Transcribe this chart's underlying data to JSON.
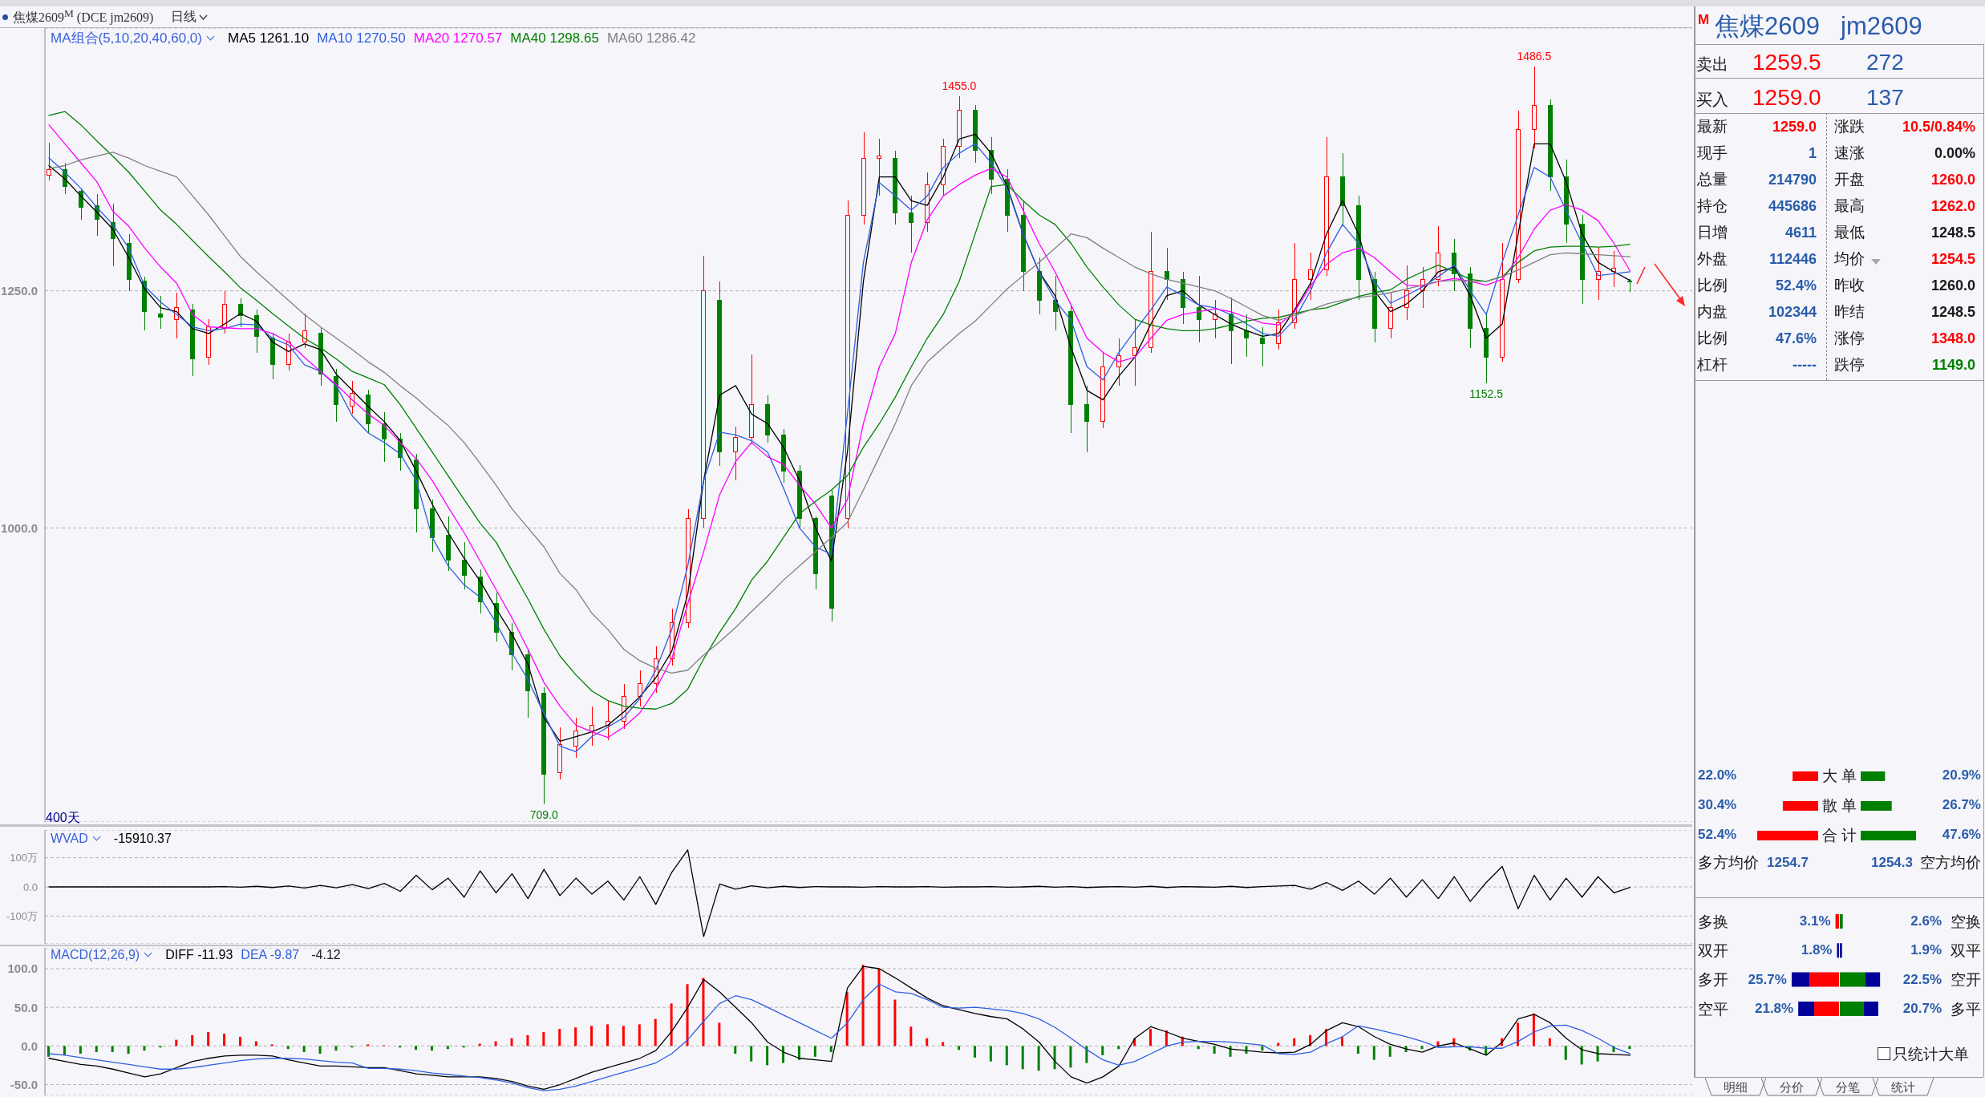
{
  "chart_data": [
    {
      "type": "candlestick",
      "title": "焦煤2609$^{M}$ (DCE jm2609)",
      "subtitle": "日线",
      "legend_title": "MA组合(5,10,20,40,60,0)",
      "legend": "top left",
      "grid": "y",
      "categories": [
        null,
        null,
        null,
        null,
        null,
        null,
        null,
        null,
        null,
        null,
        null,
        null,
        null,
        null,
        null,
        null,
        null,
        null,
        null,
        null,
        null,
        null,
        null,
        null,
        null,
        null,
        null,
        null,
        null,
        null,
        null,
        null,
        null,
        null,
        null,
        null,
        null,
        null,
        null,
        null,
        null,
        null,
        null,
        null,
        null,
        null,
        null,
        null,
        null,
        null,
        null,
        null,
        null,
        null,
        null,
        null,
        null,
        null,
        null,
        null,
        null,
        null,
        null,
        null,
        null,
        null,
        null,
        null,
        null,
        null,
        null,
        null,
        null,
        null,
        null,
        null,
        null,
        null,
        null,
        null,
        null,
        null,
        null,
        null,
        null,
        null,
        null,
        null,
        null,
        null,
        null,
        null,
        null,
        null,
        null,
        null,
        null,
        null,
        null,
        null
      ],
      "ohlc": [
        [
          1372,
          1406,
          1366,
          1378
        ],
        [
          1378,
          1385,
          1352,
          1360
        ],
        [
          1355,
          1358,
          1325,
          1338
        ],
        [
          1340,
          1352,
          1308,
          1325
        ],
        [
          1322,
          1342,
          1276,
          1305
        ],
        [
          1300,
          1310,
          1250,
          1262
        ],
        [
          1260,
          1265,
          1208,
          1228
        ],
        [
          1226,
          1245,
          1210,
          1222
        ],
        [
          1220,
          1248,
          1200,
          1232
        ],
        [
          1230,
          1236,
          1160,
          1178
        ],
        [
          1180,
          1220,
          1172,
          1212
        ],
        [
          1210,
          1250,
          1205,
          1236
        ],
        [
          1236,
          1242,
          1212,
          1224
        ],
        [
          1224,
          1230,
          1185,
          1202
        ],
        [
          1200,
          1206,
          1157,
          1172
        ],
        [
          1172,
          1205,
          1166,
          1196
        ],
        [
          1196,
          1226,
          1190,
          1208
        ],
        [
          1205,
          1212,
          1150,
          1162
        ],
        [
          1160,
          1168,
          1112,
          1130
        ],
        [
          1128,
          1155,
          1120,
          1142
        ],
        [
          1140,
          1146,
          1100,
          1110
        ],
        [
          1110,
          1122,
          1070,
          1094
        ],
        [
          1094,
          1100,
          1060,
          1074
        ],
        [
          1072,
          1078,
          995,
          1020
        ],
        [
          1020,
          1030,
          975,
          990
        ],
        [
          992,
          1012,
          955,
          966
        ],
        [
          966,
          985,
          935,
          950
        ],
        [
          948,
          956,
          910,
          922
        ],
        [
          920,
          932,
          880,
          890
        ],
        [
          890,
          900,
          850,
          866
        ],
        [
          866,
          872,
          800,
          828
        ],
        [
          826,
          832,
          709,
          740
        ],
        [
          742,
          790,
          735,
          772
        ],
        [
          770,
          800,
          758,
          786
        ],
        [
          786,
          812,
          770,
          792
        ],
        [
          792,
          818,
          776,
          796
        ],
        [
          796,
          835,
          788,
          822
        ],
        [
          822,
          850,
          812,
          836
        ],
        [
          836,
          875,
          826,
          862
        ],
        [
          862,
          915,
          855,
          900
        ],
        [
          900,
          1020,
          895,
          1010
        ],
        [
          1010,
          1287,
          1000,
          1250
        ],
        [
          1240,
          1260,
          1065,
          1080
        ],
        [
          1080,
          1107,
          1050,
          1095
        ],
        [
          1095,
          1183,
          1088,
          1130
        ],
        [
          1130,
          1140,
          1090,
          1098
        ],
        [
          1098,
          1104,
          1048,
          1060
        ],
        [
          1060,
          1066,
          1000,
          1010
        ],
        [
          1010,
          1012,
          935,
          952
        ],
        [
          1034,
          1040,
          901,
          915
        ],
        [
          1010,
          1345,
          1000,
          1330
        ],
        [
          1330,
          1417,
          1320,
          1390
        ],
        [
          1390,
          1410,
          1350,
          1392
        ],
        [
          1390,
          1398,
          1320,
          1332
        ],
        [
          1332,
          1350,
          1290,
          1322
        ],
        [
          1322,
          1375,
          1312,
          1362
        ],
        [
          1362,
          1410,
          1350,
          1402
        ],
        [
          1402,
          1455,
          1390,
          1440
        ],
        [
          1440,
          1446,
          1385,
          1398
        ],
        [
          1398,
          1412,
          1352,
          1368
        ],
        [
          1368,
          1378,
          1312,
          1330
        ],
        [
          1330,
          1345,
          1250,
          1270
        ],
        [
          1270,
          1285,
          1225,
          1240
        ],
        [
          1240,
          1266,
          1208,
          1228
        ],
        [
          1228,
          1235,
          1100,
          1130
        ],
        [
          1130,
          1150,
          1080,
          1112
        ],
        [
          1112,
          1185,
          1105,
          1170
        ],
        [
          1170,
          1200,
          1150,
          1182
        ],
        [
          1182,
          1219,
          1150,
          1190
        ],
        [
          1190,
          1312,
          1185,
          1270
        ],
        [
          1270,
          1295,
          1240,
          1262
        ],
        [
          1262,
          1270,
          1215,
          1232
        ],
        [
          1232,
          1266,
          1196,
          1220
        ],
        [
          1220,
          1240,
          1200,
          1226
        ],
        [
          1226,
          1243,
          1173,
          1208
        ],
        [
          1208,
          1225,
          1180,
          1200
        ],
        [
          1200,
          1212,
          1170,
          1194
        ],
        [
          1194,
          1230,
          1188,
          1216
        ],
        [
          1216,
          1300,
          1210,
          1262
        ],
        [
          1262,
          1290,
          1240,
          1272
        ],
        [
          1272,
          1412,
          1266,
          1370
        ],
        [
          1370,
          1395,
          1320,
          1340
        ],
        [
          1340,
          1350,
          1240,
          1262
        ],
        [
          1262,
          1270,
          1196,
          1210
        ],
        [
          1210,
          1248,
          1200,
          1232
        ],
        [
          1232,
          1277,
          1219,
          1250
        ],
        [
          1250,
          1275,
          1232,
          1262
        ],
        [
          1262,
          1318,
          1255,
          1290
        ],
        [
          1290,
          1305,
          1250,
          1268
        ],
        [
          1268,
          1275,
          1190,
          1210
        ],
        [
          1210,
          1225,
          1152.5,
          1180
        ],
        [
          1180,
          1300,
          1175,
          1262
        ],
        [
          1262,
          1440,
          1258,
          1420
        ],
        [
          1420,
          1486.5,
          1400,
          1445
        ],
        [
          1445,
          1452,
          1355,
          1370
        ],
        [
          1370,
          1388,
          1300,
          1320
        ],
        [
          1320,
          1330,
          1236,
          1262
        ],
        [
          1262,
          1295,
          1240,
          1270
        ],
        [
          1270,
          1292,
          1254,
          1274
        ],
        [
          1260,
          1262,
          1248.5,
          1259
        ]
      ],
      "series": [
        {
          "type": "line",
          "name": "MA5 1261.10",
          "color": "#000000",
          "values": [
            1382,
            1368,
            1350,
            1333,
            1315,
            1285,
            1252,
            1232,
            1228,
            1210,
            1205,
            1215,
            1226,
            1218,
            1196,
            1186,
            1194,
            1188,
            1162,
            1145,
            1128,
            1112,
            1092,
            1060,
            1025,
            995,
            968,
            944,
            915,
            888,
            856,
            800,
            775,
            780,
            785,
            792,
            806,
            822,
            842,
            870,
            930,
            1050,
            1140,
            1150,
            1120,
            1110,
            1085,
            1050,
            1000,
            965,
            1080,
            1260,
            1370,
            1370,
            1345,
            1340,
            1370,
            1410,
            1415,
            1395,
            1360,
            1310,
            1270,
            1245,
            1190,
            1145,
            1135,
            1160,
            1180,
            1215,
            1245,
            1250,
            1235,
            1225,
            1215,
            1208,
            1202,
            1205,
            1230,
            1258,
            1310,
            1345,
            1310,
            1250,
            1228,
            1236,
            1250,
            1270,
            1275,
            1245,
            1200,
            1215,
            1310,
            1405,
            1405,
            1365,
            1310,
            1280,
            1270,
            1261
          ]
        },
        {
          "type": "line",
          "name": "MA10 1270.50",
          "color": "#2f5fe0",
          "values": [
            1390,
            1375,
            1358,
            1338,
            1320,
            1295,
            1255,
            1238,
            1225,
            1212,
            1208,
            1210,
            1215,
            1214,
            1200,
            1193,
            1172,
            1165,
            1150,
            1118,
            1100,
            1090,
            1078,
            1050,
            990,
            960,
            940,
            927,
            900,
            868,
            840,
            804,
            770,
            764,
            780,
            790,
            800,
            820,
            850,
            893,
            960,
            1050,
            1101,
            1098,
            1092,
            1080,
            1042,
            1000,
            980,
            972,
            1120,
            1280,
            1364,
            1350,
            1335,
            1350,
            1380,
            1395,
            1405,
            1385,
            1358,
            1310,
            1270,
            1240,
            1219,
            1170,
            1156,
            1185,
            1208,
            1230,
            1254,
            1245,
            1235,
            1232,
            1225,
            1215,
            1205,
            1202,
            1220,
            1250,
            1290,
            1320,
            1300,
            1260,
            1237,
            1245,
            1254,
            1265,
            1277,
            1250,
            1225,
            1280,
            1330,
            1380,
            1370,
            1335,
            1300,
            1266,
            1268,
            1270
          ]
        },
        {
          "type": "line",
          "name": "MA20 1270.57",
          "color": "#ff00ff",
          "values": [
            1425,
            1405,
            1385,
            1365,
            1334,
            1318,
            1295,
            1275,
            1258,
            1225,
            1212,
            1211,
            1210,
            1210,
            1205,
            1196,
            1180,
            1165,
            1151,
            1135,
            1120,
            1108,
            1090,
            1073,
            1050,
            1022,
            995,
            965,
            935,
            905,
            872,
            837,
            812,
            792,
            785,
            779,
            790,
            805,
            830,
            862,
            920,
            975,
            1035,
            1070,
            1090,
            1075,
            1067,
            1045,
            1025,
            1000,
            1030,
            1110,
            1170,
            1205,
            1280,
            1325,
            1350,
            1362,
            1372,
            1379,
            1370,
            1335,
            1300,
            1270,
            1235,
            1200,
            1185,
            1175,
            1180,
            1200,
            1219,
            1225,
            1228,
            1231,
            1228,
            1222,
            1216,
            1214,
            1228,
            1255,
            1278,
            1290,
            1295,
            1285,
            1270,
            1256,
            1255,
            1260,
            1263,
            1260,
            1256,
            1262,
            1285,
            1315,
            1335,
            1341,
            1335,
            1324,
            1300,
            1271
          ]
        },
        {
          "type": "line",
          "name": "MA40 1298.65",
          "color": "#008000",
          "values": [
            1435,
            1439,
            1425,
            1408,
            1392,
            1375,
            1355,
            1335,
            1320,
            1303,
            1286,
            1270,
            1253,
            1240,
            1226,
            1213,
            1200,
            1190,
            1178,
            1165,
            1158,
            1151,
            1130,
            1105,
            1080,
            1055,
            1030,
            1005,
            985,
            955,
            925,
            893,
            865,
            845,
            828,
            818,
            812,
            810,
            809,
            815,
            830,
            862,
            890,
            915,
            945,
            965,
            990,
            1015,
            1028,
            1040,
            1055,
            1085,
            1110,
            1138,
            1170,
            1200,
            1225,
            1260,
            1310,
            1360,
            1362,
            1345,
            1330,
            1320,
            1300,
            1275,
            1254,
            1235,
            1220,
            1214,
            1210,
            1208,
            1208,
            1210,
            1214,
            1218,
            1221,
            1222,
            1226,
            1230,
            1232,
            1238,
            1244,
            1248,
            1251,
            1262,
            1270,
            1277,
            1270,
            1262,
            1260,
            1265,
            1280,
            1292,
            1296,
            1297,
            1297,
            1296,
            1297,
            1299
          ]
        },
        {
          "type": "line",
          "name": "MA60 1286.42",
          "color": "#808080",
          "values": [
            1379,
            1382,
            1388,
            1392,
            1396,
            1390,
            1382,
            1376,
            1370,
            1350,
            1330,
            1308,
            1286,
            1270,
            1255,
            1240,
            1225,
            1212,
            1200,
            1188,
            1175,
            1164,
            1150,
            1137,
            1122,
            1108,
            1090,
            1068,
            1045,
            1020,
            1000,
            980,
            952,
            935,
            910,
            893,
            872,
            860,
            852,
            847,
            850,
            866,
            880,
            895,
            912,
            928,
            945,
            960,
            975,
            990,
            1006,
            1040,
            1075,
            1110,
            1150,
            1175,
            1190,
            1205,
            1218,
            1235,
            1252,
            1266,
            1280,
            1295,
            1310,
            1306,
            1295,
            1285,
            1275,
            1268,
            1262,
            1258,
            1254,
            1250,
            1242,
            1233,
            1224,
            1219,
            1224,
            1230,
            1236,
            1240,
            1243,
            1245,
            1248,
            1252,
            1256,
            1260,
            1261,
            1260,
            1260,
            1265,
            1272,
            1280,
            1288,
            1290,
            1289,
            1288,
            1287,
            1286
          ]
        }
      ],
      "ylim": [
        690,
        1527
      ],
      "yticks": [
        {
          "value": 1000,
          "label": "1000.0"
        },
        {
          "value": 1250,
          "label": "1250.0"
        }
      ],
      "annotations": [
        {
          "text": "1455.0",
          "y": 1455
        },
        {
          "text": "1486.5",
          "y": 1486.5
        },
        {
          "text": "709.0",
          "y": 709
        },
        {
          "text": "1152.5",
          "y": 1152.5
        },
        "400天"
      ]
    },
    {
      "type": "line",
      "legend_title": "WVAD",
      "legend": "top left",
      "grid": "y",
      "categories": [
        null,
        null,
        null,
        null,
        null,
        null,
        null,
        null,
        null,
        null,
        null,
        null,
        null,
        null,
        null,
        null,
        null,
        null,
        null,
        null,
        null,
        null,
        null,
        null,
        null,
        null,
        null,
        null,
        null,
        null,
        null,
        null,
        null,
        null,
        null,
        null,
        null,
        null,
        null,
        null,
        null,
        null,
        null,
        null,
        null,
        null,
        null,
        null,
        null,
        null,
        null,
        null,
        null,
        null,
        null,
        null,
        null,
        null,
        null,
        null,
        null,
        null,
        null,
        null,
        null,
        null,
        null,
        null,
        null,
        null,
        null,
        null,
        null,
        null,
        null,
        null,
        null,
        null,
        null,
        null,
        null,
        null,
        null,
        null,
        null,
        null,
        null,
        null,
        null,
        null,
        null,
        null,
        null,
        null,
        null,
        null,
        null,
        null,
        null,
        null
      ],
      "series": [
        {
          "name": "-15910.37",
          "color": "#000000",
          "values": [
            0,
            0,
            0,
            0,
            0,
            0,
            0,
            0,
            0,
            0,
            0,
            1,
            -1,
            2,
            -2,
            3,
            -4,
            5,
            -3,
            8,
            -6,
            12,
            -15,
            40,
            -10,
            30,
            -35,
            55,
            -20,
            45,
            -40,
            60,
            -30,
            30,
            -25,
            20,
            -45,
            35,
            -60,
            50,
            127,
            -170,
            10,
            -8,
            4,
            -3,
            2,
            -2,
            1,
            0,
            0,
            -1,
            1,
            0,
            0,
            1,
            -1,
            0,
            0,
            1,
            -1,
            0,
            2,
            -1,
            1,
            -2,
            0,
            1,
            -1,
            2,
            -2,
            1,
            0,
            -1,
            2,
            -2,
            1,
            3,
            5,
            -8,
            15,
            -12,
            20,
            -25,
            30,
            -35,
            25,
            -40,
            35,
            -50,
            15,
            70,
            -75,
            40,
            -45,
            30,
            -35,
            35,
            -20,
            -2
          ]
        }
      ],
      "ylim": [
        -195,
        195
      ],
      "yticks": [
        {
          "value": -100,
          "label": "-100万"
        },
        {
          "value": 0,
          "label": "0.0"
        },
        {
          "value": 100,
          "label": "100万"
        }
      ]
    },
    {
      "type": "bar",
      "legend_title": "MACD(12,26,9)",
      "legend": "top left",
      "grid": "y",
      "categories": [
        null,
        null,
        null,
        null,
        null,
        null,
        null,
        null,
        null,
        null,
        null,
        null,
        null,
        null,
        null,
        null,
        null,
        null,
        null,
        null,
        null,
        null,
        null,
        null,
        null,
        null,
        null,
        null,
        null,
        null,
        null,
        null,
        null,
        null,
        null,
        null,
        null,
        null,
        null,
        null,
        null,
        null,
        null,
        null,
        null,
        null,
        null,
        null,
        null,
        null,
        null,
        null,
        null,
        null,
        null,
        null,
        null,
        null,
        null,
        null,
        null,
        null,
        null,
        null,
        null,
        null,
        null,
        null,
        null,
        null,
        null,
        null,
        null,
        null,
        null,
        null,
        null,
        null,
        null,
        null,
        null,
        null,
        null,
        null,
        null,
        null,
        null,
        null,
        null,
        null,
        null,
        null,
        null,
        null,
        null,
        null,
        null,
        null,
        null,
        null
      ],
      "series": [
        {
          "type": "bar",
          "values": [
            -14,
            -12,
            -10,
            -8,
            -8,
            -10,
            -6,
            -2,
            8,
            14,
            18,
            16,
            12,
            6,
            2,
            -4,
            -8,
            -10,
            -6,
            -2,
            2,
            1,
            -2,
            -5,
            -6,
            -4,
            -2,
            3,
            6,
            10,
            14,
            18,
            22,
            24,
            26,
            28,
            26,
            28,
            35,
            55,
            80,
            88,
            30,
            -10,
            -20,
            -25,
            -22,
            -18,
            -14,
            -8,
            70,
            105,
            100,
            60,
            25,
            10,
            5,
            -5,
            -15,
            -20,
            -25,
            -30,
            -32,
            -30,
            -28,
            -22,
            -12,
            -4,
            10,
            22,
            20,
            12,
            -4,
            -10,
            -14,
            -10,
            -6,
            4,
            10,
            14,
            22,
            12,
            -10,
            -18,
            -14,
            -8,
            -4,
            6,
            10,
            -6,
            -12,
            10,
            30,
            42,
            10,
            -18,
            -24,
            -20,
            -8,
            -4
          ],
          "colors": [
            "#008000",
            "#008000",
            "#008000",
            "#008000",
            "#008000",
            "#008000",
            "#008000",
            "#008000",
            "#ff0000",
            "#ff0000",
            "#ff0000",
            "#ff0000",
            "#ff0000",
            "#ff0000",
            "#ff0000",
            "#008000",
            "#008000",
            "#008000",
            "#008000",
            "#008000",
            "#ff0000",
            "#ff0000",
            "#008000",
            "#008000",
            "#008000",
            "#008000",
            "#008000",
            "#ff0000",
            "#ff0000",
            "#ff0000",
            "#ff0000",
            "#ff0000",
            "#ff0000",
            "#ff0000",
            "#ff0000",
            "#ff0000",
            "#ff0000",
            "#ff0000",
            "#ff0000",
            "#ff0000",
            "#ff0000",
            "#ff0000",
            "#ff0000",
            "#008000",
            "#008000",
            "#008000",
            "#008000",
            "#008000",
            "#008000",
            "#008000",
            "#ff0000",
            "#ff0000",
            "#ff0000",
            "#ff0000",
            "#ff0000",
            "#ff0000",
            "#ff0000",
            "#008000",
            "#008000",
            "#008000",
            "#008000",
            "#008000",
            "#008000",
            "#008000",
            "#008000",
            "#008000",
            "#008000",
            "#008000",
            "#ff0000",
            "#ff0000",
            "#ff0000",
            "#ff0000",
            "#008000",
            "#008000",
            "#008000",
            "#008000",
            "#008000",
            "#ff0000",
            "#ff0000",
            "#ff0000",
            "#ff0000",
            "#ff0000",
            "#008000",
            "#008000",
            "#008000",
            "#008000",
            "#008000",
            "#ff0000",
            "#ff0000",
            "#008000",
            "#008000",
            "#ff0000",
            "#ff0000",
            "#ff0000",
            "#ff0000",
            "#008000",
            "#008000",
            "#008000",
            "#008000",
            "#008000"
          ]
        },
        {
          "type": "line",
          "name": "DIFF -11.93",
          "color": "#000000",
          "values": [
            -16,
            -20,
            -24,
            -26,
            -30,
            -35,
            -40,
            -36,
            -28,
            -20,
            -16,
            -13,
            -12,
            -12,
            -13,
            -18,
            -22,
            -26,
            -26,
            -27,
            -28,
            -28,
            -32,
            -36,
            -38,
            -40,
            -40,
            -40,
            -42,
            -46,
            -52,
            -56,
            -50,
            -42,
            -34,
            -28,
            -22,
            -16,
            -6,
            19,
            50,
            86,
            70,
            50,
            30,
            5,
            -8,
            -16,
            -18,
            -20,
            75,
            103,
            100,
            88,
            75,
            62,
            52,
            47,
            42,
            38,
            35,
            22,
            5,
            -20,
            -40,
            -48,
            -40,
            -26,
            10,
            25,
            18,
            10,
            6,
            2,
            -4,
            -6,
            -8,
            -9,
            -8,
            2,
            20,
            30,
            25,
            12,
            2,
            -4,
            -8,
            0,
            4,
            -4,
            -12,
            5,
            35,
            41,
            30,
            10,
            -5,
            -10,
            -11,
            -12
          ]
        },
        {
          "type": "line",
          "name": "DEA -9.87",
          "color": "#2f5fe0",
          "values": [
            -10,
            -12,
            -15,
            -18,
            -21,
            -24,
            -27,
            -30,
            -30,
            -28,
            -25,
            -22,
            -19,
            -17,
            -16,
            -16,
            -17,
            -19,
            -21,
            -22,
            -29,
            -29,
            -30,
            -32,
            -35,
            -37,
            -39,
            -41,
            -44,
            -48,
            -54,
            -58,
            -56,
            -52,
            -46,
            -40,
            -34,
            -28,
            -22,
            -10,
            8,
            32,
            55,
            65,
            60,
            50,
            40,
            30,
            20,
            10,
            30,
            60,
            80,
            70,
            68,
            60,
            50,
            49,
            50,
            48,
            46,
            42,
            35,
            24,
            10,
            -5,
            -18,
            -25,
            -20,
            -10,
            0,
            5,
            6,
            6,
            5,
            3,
            1,
            -10,
            -11,
            -8,
            3,
            12,
            26,
            22,
            17,
            12,
            6,
            -2,
            -1,
            -1,
            -3,
            -3,
            6,
            18,
            26,
            27,
            20,
            10,
            -2,
            -10
          ]
        }
      ],
      "ylim": [
        -64,
        127
      ],
      "yticks": [
        {
          "value": -50,
          "label": "-50.0"
        },
        {
          "value": 0,
          "label": "0.0"
        },
        {
          "value": 50,
          "label": "50.0"
        },
        {
          "value": 100,
          "label": "100.0"
        }
      ],
      "annotations": [
        "-4.12"
      ]
    },
    {
      "type": "other",
      "annotations": [
        "M",
        "焦煤2609",
        "jm2609",
        "卖出",
        "1259.5",
        "272",
        "买入",
        "1259.0",
        "137",
        "最新",
        "1259.0",
        "涨跌",
        "10.5/0.84%",
        "现手",
        "1",
        "速涨",
        "0.00%",
        "总量",
        "214790",
        "开盘",
        "1260.0",
        "持仓",
        "445686",
        "最高",
        "1262.0",
        "日增",
        "4611",
        "最低",
        "1248.5",
        "外盘",
        "112446",
        "均价",
        "1254.5",
        "比例",
        "52.4%",
        "昨收",
        "1260.0",
        "内盘",
        "102344",
        "昨结",
        "1248.5",
        "比例",
        "47.6%",
        "涨停",
        "1348.0",
        "杠杆",
        "-----",
        "跌停",
        "1149.0",
        "多方均价",
        "1254.7",
        "1254.3",
        "空方均价",
        "只统计大单",
        "明细",
        "分价",
        "分笔",
        "统计"
      ]
    },
    {
      "type": "bar",
      "orientation": "horizontal",
      "tick_labels": "y",
      "categories": [
        "大 单",
        "散 单",
        "合 计"
      ],
      "series": [
        {
          "color": "#ff0000",
          "values": [
            22.0,
            30.4,
            52.4
          ],
          "value_labels": [
            "22.0%",
            "30.4%",
            "52.4%"
          ]
        }
      ]
    },
    {
      "type": "bar",
      "orientation": "horizontal",
      "categories": [
        null,
        null,
        null
      ],
      "series": [
        {
          "color": "#008000",
          "values": [
            20.9,
            26.7,
            47.6
          ],
          "value_labels": [
            "20.9%",
            "26.7%",
            "47.6%"
          ]
        }
      ]
    },
    {
      "type": "bar",
      "orientation": "horizontal",
      "stacked": true,
      "tick_labels": "y",
      "categories": [
        "多换",
        "双开",
        "多开",
        "空平"
      ],
      "series": [
        {
          "colors": [
            "#ff0000",
            "#000099",
            "#ff0000",
            "#ff0000"
          ],
          "values": [
            3.1,
            1.8,
            25.7,
            21.8
          ],
          "value_labels": [
            "3.1%",
            "1.8%",
            "25.7%",
            "21.8%"
          ]
        },
        {
          "color": "#000099",
          "values": [
            null,
            null,
            16,
            14
          ]
        }
      ]
    },
    {
      "type": "bar",
      "orientation": "horizontal",
      "stacked": true,
      "tick_labels": "y",
      "categories": [
        "空换",
        "双平",
        "空开",
        "多平"
      ],
      "series": [
        {
          "colors": [
            "#008000",
            "#000099",
            "#008000",
            "#008000"
          ],
          "values": [
            2.6,
            1.9,
            22.5,
            20.7
          ],
          "value_labels": [
            "2.6%",
            "1.9%",
            "22.5%",
            "20.7%"
          ]
        },
        {
          "color": "#000099",
          "values": [
            null,
            null,
            13,
            13
          ]
        }
      ]
    }
  ]
}
